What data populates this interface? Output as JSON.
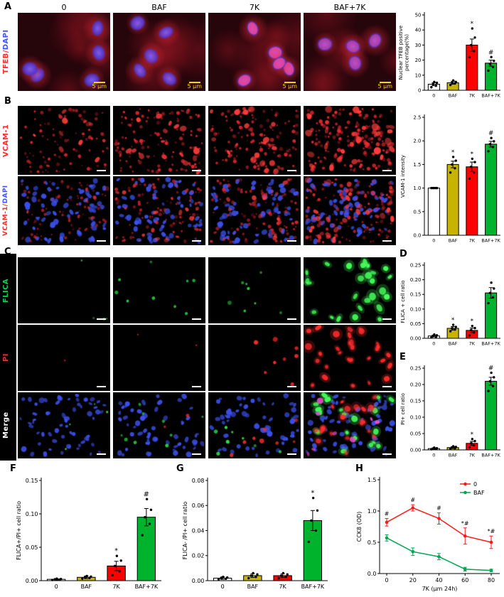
{
  "figure": {
    "panel_labels": {
      "A": "A",
      "B": "B",
      "C": "C",
      "D": "D",
      "E": "E",
      "F": "F",
      "G": "G",
      "H": "H"
    }
  },
  "colors": {
    "label_red": "#ff2a2a",
    "label_blue": "#4053ff",
    "label_green": "#00d44a",
    "label_white": "#ffffff",
    "scale_yellow": "#ffd400",
    "bar_white": "#ffffff",
    "bar_yellow": "#c8b400",
    "bar_red": "#ff0000",
    "bar_green": "#00b32c",
    "line_red": "#ff1a1a",
    "line_green": "#00a651"
  },
  "panelA": {
    "columns": [
      "0",
      "BAF",
      "7K",
      "BAF+7K"
    ],
    "scale_text": "5 μm"
  },
  "row_labels": {
    "tfeb": {
      "a": "TFEB",
      "b": "/",
      "c": "DAPI"
    },
    "vcam": {
      "a": "VCAM-1"
    },
    "vcam_dapi": {
      "a": "VCAM-1",
      "b": "/",
      "c": "DAPI"
    },
    "flica": "FLICA",
    "pi": "PI",
    "merge": "Merge"
  },
  "chart_data": [
    {
      "type": "bar",
      "panel": "A",
      "categories": [
        "0",
        "BAF",
        "7K",
        "BAF+7K"
      ],
      "values": [
        4,
        5,
        30,
        18
      ],
      "errors": [
        1,
        1,
        4,
        2
      ],
      "points": [
        [
          2,
          3,
          4,
          5,
          5.5
        ],
        [
          3.5,
          4.5,
          5,
          5.5,
          6.5
        ],
        [
          22,
          26,
          30,
          35,
          41
        ],
        [
          13,
          15.5,
          17.5,
          19.5,
          22
        ]
      ],
      "annotations": [
        "",
        "",
        "*",
        "#"
      ],
      "ylabel": "Nuclear TFEB positive\npercentage(%)",
      "ylim": [
        0,
        50
      ],
      "yticks": [
        0,
        10,
        20,
        30,
        40,
        50
      ],
      "ytick_labels": [
        "0",
        "10",
        "20",
        "30",
        "40",
        "50"
      ],
      "colors": [
        "#ffffff",
        "#c8b400",
        "#ff0000",
        "#00b32c"
      ]
    },
    {
      "type": "bar",
      "panel": "B",
      "categories": [
        "0",
        "BAF",
        "7K",
        "BAF+7K"
      ],
      "values": [
        1.0,
        1.5,
        1.45,
        1.93
      ],
      "errors": [
        0.01,
        0.07,
        0.1,
        0.06
      ],
      "points": [
        [
          1,
          1,
          1,
          1,
          1
        ],
        [
          1.33,
          1.42,
          1.5,
          1.58,
          1.66
        ],
        [
          1.2,
          1.33,
          1.45,
          1.55,
          1.62
        ],
        [
          1.78,
          1.87,
          1.93,
          1.99,
          2.06
        ]
      ],
      "annotations": [
        "",
        "*",
        "*",
        "#"
      ],
      "ylabel": "VCAM-1 intensity",
      "ylim": [
        0,
        2.5
      ],
      "yticks": [
        0,
        0.5,
        1,
        1.5,
        2,
        2.5
      ],
      "ytick_labels": [
        "0.0",
        "0.5",
        "1.0",
        "1.5",
        "2.0",
        "2.5"
      ],
      "colors": [
        "#ffffff",
        "#c8b400",
        "#ff0000",
        "#00b32c"
      ]
    },
    {
      "type": "bar",
      "panel": "D",
      "categories": [
        "0",
        "BAF",
        "7K",
        "BAF+7K"
      ],
      "values": [
        0.008,
        0.034,
        0.027,
        0.155
      ],
      "errors": [
        0.003,
        0.006,
        0.008,
        0.018
      ],
      "points": [
        [
          0.003,
          0.005,
          0.007,
          0.01,
          0.013
        ],
        [
          0.024,
          0.03,
          0.034,
          0.039,
          0.046
        ],
        [
          0.01,
          0.02,
          0.028,
          0.035,
          0.042
        ],
        [
          0.12,
          0.14,
          0.155,
          0.17,
          0.19
        ]
      ],
      "annotations": [
        "",
        "*",
        "*",
        ""
      ],
      "ylabel": "FLICA + cell ratio",
      "ylim": [
        0,
        0.25
      ],
      "yticks": [
        0,
        0.05,
        0.1,
        0.15,
        0.2,
        0.25
      ],
      "ytick_labels": [
        "0.00",
        "0.05",
        "0.10",
        "0.15",
        "0.20",
        "0.25"
      ],
      "colors": [
        "#ffffff",
        "#c8b400",
        "#ff0000",
        "#00b32c"
      ]
    },
    {
      "type": "bar",
      "panel": "E",
      "categories": [
        "0",
        "BAF",
        "7K",
        "BAF+7K"
      ],
      "values": [
        0.004,
        0.007,
        0.02,
        0.21
      ],
      "errors": [
        0.002,
        0.003,
        0.006,
        0.012
      ],
      "points": [
        [
          0.002,
          0.003,
          0.004,
          0.005,
          0.007
        ],
        [
          0.004,
          0.005,
          0.007,
          0.009,
          0.011
        ],
        [
          0.008,
          0.014,
          0.02,
          0.027,
          0.033
        ],
        [
          0.18,
          0.195,
          0.21,
          0.222,
          0.236
        ]
      ],
      "annotations": [
        "",
        "",
        "*",
        "#"
      ],
      "ylabel": "PI+ cell ratio",
      "ylim": [
        0,
        0.25
      ],
      "yticks": [
        0,
        0.05,
        0.1,
        0.15,
        0.2,
        0.25
      ],
      "ytick_labels": [
        "0.00",
        "0.05",
        "0.10",
        "0.15",
        "0.20",
        "0.25"
      ],
      "colors": [
        "#ffffff",
        "#c8b400",
        "#ff0000",
        "#00b32c"
      ]
    },
    {
      "type": "bar",
      "panel": "F",
      "categories": [
        "0",
        "BAF",
        "7K",
        "BAF+7K"
      ],
      "values": [
        0.002,
        0.005,
        0.022,
        0.095
      ],
      "errors": [
        0.001,
        0.002,
        0.007,
        0.013
      ],
      "points": [
        [
          0.001,
          0.0015,
          0.002,
          0.0025,
          0.003
        ],
        [
          0.003,
          0.004,
          0.005,
          0.006,
          0.007
        ],
        [
          0.008,
          0.014,
          0.022,
          0.03,
          0.037
        ],
        [
          0.068,
          0.085,
          0.095,
          0.106,
          0.122
        ]
      ],
      "annotations": [
        "",
        "",
        "*",
        "#"
      ],
      "ylabel": "FLICA+/PI+ cell ratio",
      "ylim": [
        0,
        0.15
      ],
      "yticks": [
        0,
        0.05,
        0.1,
        0.15
      ],
      "ytick_labels": [
        "0.00",
        "0.05",
        "0.10",
        "0.15"
      ],
      "colors": [
        "#ffffff",
        "#c8b400",
        "#ff0000",
        "#00b32c"
      ]
    },
    {
      "type": "bar",
      "panel": "G",
      "categories": [
        "0",
        "BAF",
        "7K",
        "BAF+7K"
      ],
      "values": [
        0.002,
        0.004,
        0.004,
        0.048
      ],
      "errors": [
        0.001,
        0.0015,
        0.0015,
        0.008
      ],
      "points": [
        [
          0.001,
          0.0015,
          0.002,
          0.0025,
          0.003
        ],
        [
          0.002,
          0.003,
          0.004,
          0.005,
          0.006
        ],
        [
          0.002,
          0.003,
          0.004,
          0.005,
          0.006
        ],
        [
          0.031,
          0.04,
          0.048,
          0.056,
          0.066
        ]
      ],
      "annotations": [
        "",
        "",
        "",
        "*"
      ],
      "ylabel": "FLICA- /PI+ cell ratio",
      "ylim": [
        0,
        0.08
      ],
      "yticks": [
        0,
        0.02,
        0.04,
        0.06,
        0.08
      ],
      "ytick_labels": [
        "0.00",
        "0.02",
        "0.04",
        "0.06",
        "0.08"
      ],
      "colors": [
        "#ffffff",
        "#c8b400",
        "#ff0000",
        "#00b32c"
      ]
    },
    {
      "type": "line",
      "panel": "H",
      "x": [
        0,
        20,
        40,
        60,
        80
      ],
      "xticks": [
        0,
        20,
        40,
        60,
        80
      ],
      "series": [
        {
          "name": "0",
          "color": "#ff1a1a",
          "values": [
            0.82,
            1.05,
            0.88,
            0.6,
            0.5
          ],
          "errors": [
            0.06,
            0.05,
            0.09,
            0.13,
            0.1
          ],
          "annotations": [
            "#",
            "#",
            "#",
            "*#",
            "*#"
          ]
        },
        {
          "name": "BAF",
          "color": "#00a651",
          "values": [
            0.57,
            0.35,
            0.27,
            0.07,
            0.05
          ],
          "errors": [
            0.05,
            0.06,
            0.05,
            0.03,
            0.02
          ],
          "annotations": [
            "",
            "",
            "",
            "",
            ""
          ]
        }
      ],
      "ylabel": "CCK8 (OD)",
      "xlabel": "7K (μm 24h)",
      "ylim": [
        0,
        1.5
      ],
      "yticks": [
        0,
        0.5,
        1,
        1.5
      ],
      "ytick_labels": [
        "0.0",
        "0.5",
        "1.0",
        "1.5"
      ],
      "legend_position": "top-right"
    }
  ]
}
